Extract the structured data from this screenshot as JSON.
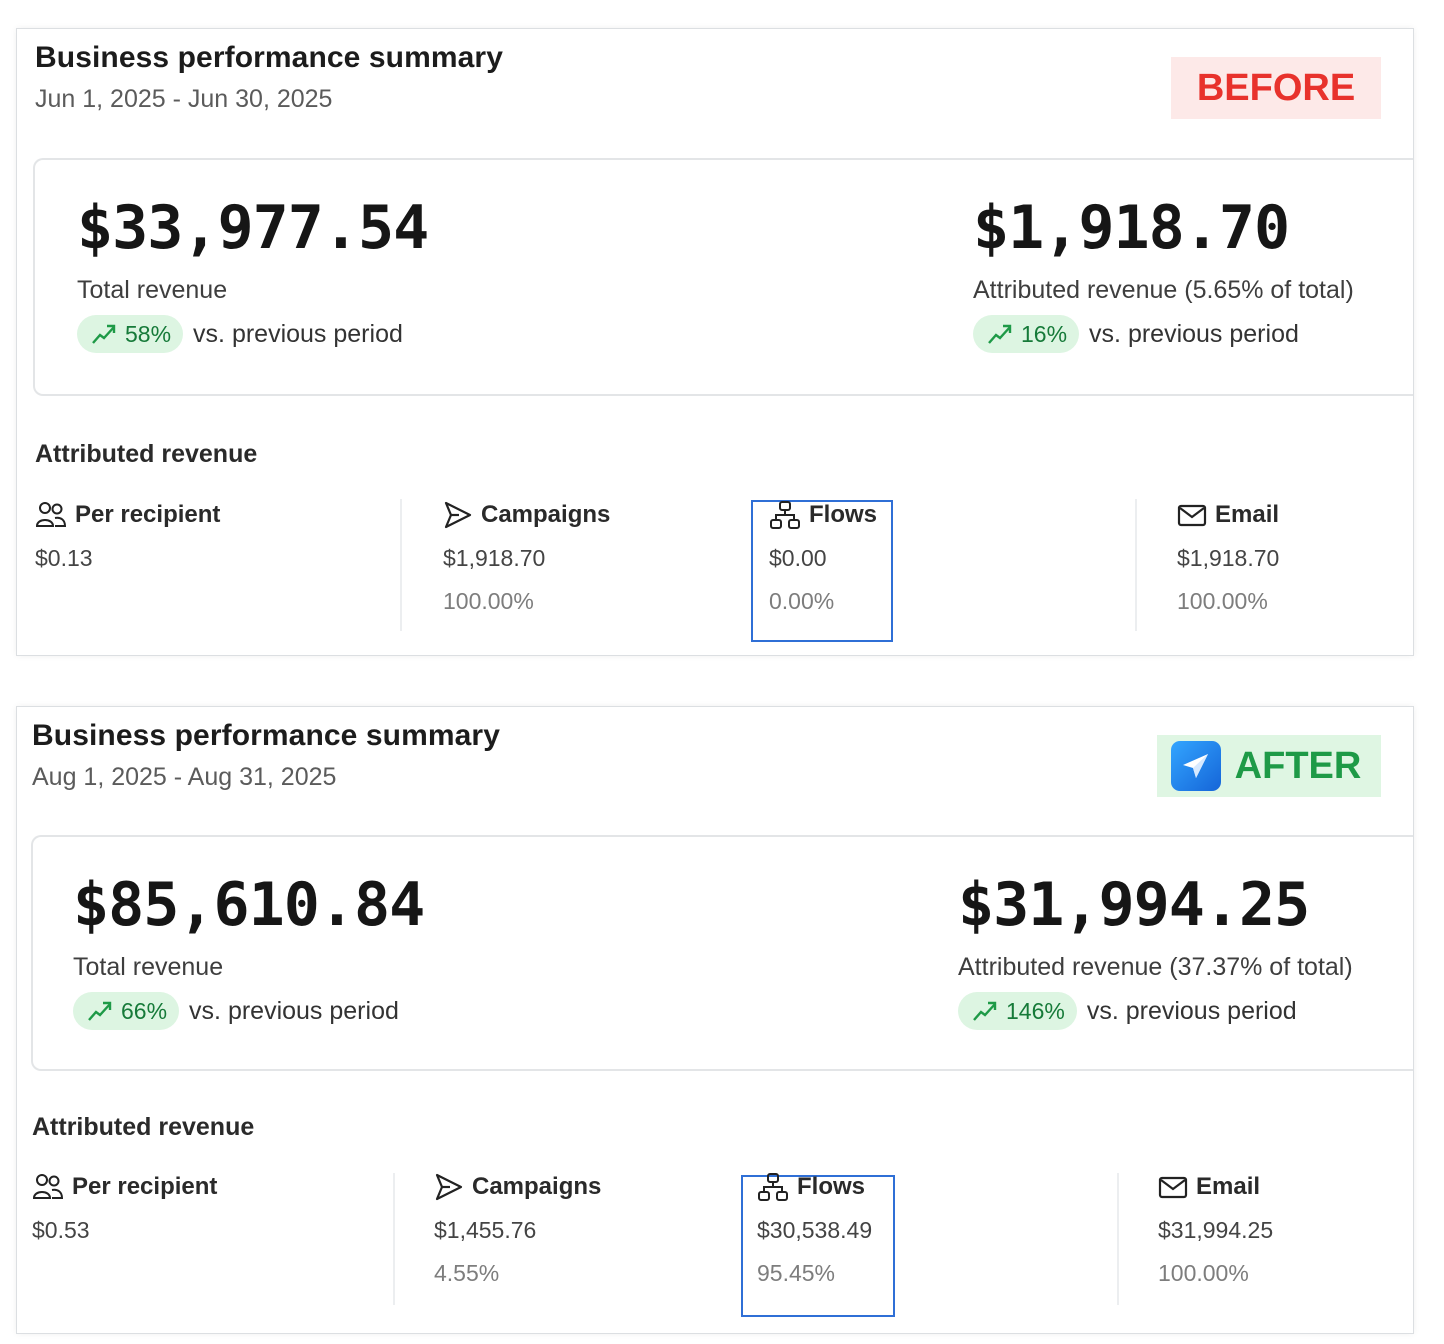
{
  "before": {
    "title": "Business performance summary",
    "date_range": "Jun 1, 2025 - Jun 30, 2025",
    "tag": "BEFORE",
    "total_revenue": {
      "value": "$33,977.54",
      "label": "Total revenue",
      "change": "58%",
      "change_suffix": "vs. previous period"
    },
    "attributed_revenue": {
      "value": "$1,918.70",
      "label": "Attributed revenue (5.65% of total)",
      "change": "16%",
      "change_suffix": "vs. previous period"
    },
    "section_title": "Attributed revenue",
    "metrics": [
      {
        "label": "Per recipient",
        "icon": "people-icon",
        "value": "$0.13",
        "percent": ""
      },
      {
        "label": "Campaigns",
        "icon": "send-icon",
        "value": "$1,918.70",
        "percent": "100.00%"
      },
      {
        "label": "Flows",
        "icon": "flow-icon",
        "value": "$0.00",
        "percent": "0.00%"
      },
      {
        "label": "Email",
        "icon": "envelope-icon",
        "value": "$1,918.70",
        "percent": "100.00%"
      }
    ]
  },
  "after": {
    "title": "Business performance summary",
    "date_range": "Aug 1, 2025 - Aug 31, 2025",
    "tag": "AFTER",
    "total_revenue": {
      "value": "$85,610.84",
      "label": "Total revenue",
      "change": "66%",
      "change_suffix": "vs. previous period"
    },
    "attributed_revenue": {
      "value": "$31,994.25",
      "label": "Attributed revenue (37.37% of total)",
      "change": "146%",
      "change_suffix": "vs. previous period"
    },
    "section_title": "Attributed revenue",
    "metrics": [
      {
        "label": "Per recipient",
        "icon": "people-icon",
        "value": "$0.53",
        "percent": ""
      },
      {
        "label": "Campaigns",
        "icon": "send-icon",
        "value": "$1,455.76",
        "percent": "4.55%"
      },
      {
        "label": "Flows",
        "icon": "flow-icon",
        "value": "$30,538.49",
        "percent": "95.45%"
      },
      {
        "label": "Email",
        "icon": "envelope-icon",
        "value": "$31,994.25",
        "percent": "100.00%"
      }
    ]
  },
  "colors": {
    "before_tag_bg": "#fde9e8",
    "before_tag_text": "#e8322c",
    "after_tag_bg": "#dff6e3",
    "after_tag_text": "#1e9a47",
    "pill_bg": "#ddf5e2",
    "pill_text": "#167a39",
    "highlight_border": "#2f6fd6"
  }
}
